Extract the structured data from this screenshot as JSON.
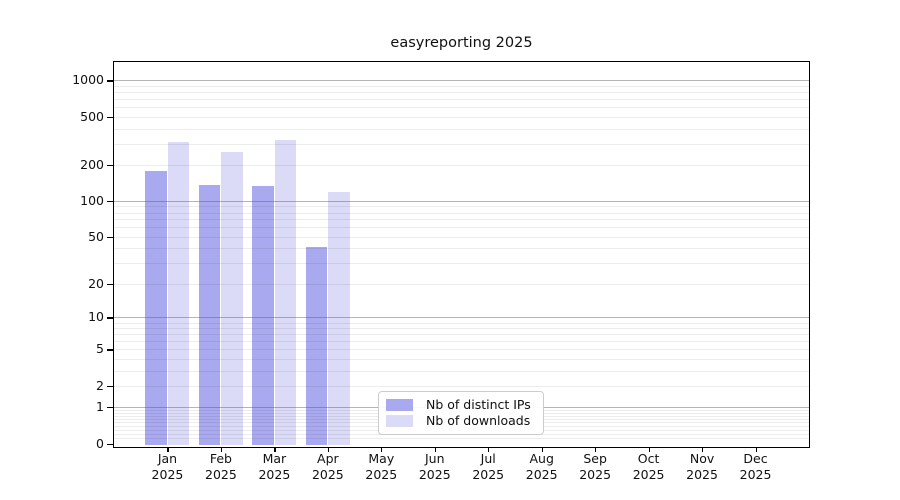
{
  "title": "easyreporting 2025",
  "chart_data": {
    "type": "bar",
    "title": "easyreporting 2025",
    "year": "2025",
    "categories": [
      "Jan",
      "Feb",
      "Mar",
      "Apr",
      "May",
      "Jun",
      "Jul",
      "Aug",
      "Sep",
      "Oct",
      "Nov",
      "Dec"
    ],
    "series": [
      {
        "name": "Nb of distinct IPs",
        "color": "#a9a9f0",
        "values": [
          177,
          135,
          134,
          41,
          0,
          0,
          0,
          0,
          0,
          0,
          0,
          0
        ]
      },
      {
        "name": "Nb of downloads",
        "color": "#dbdbf7",
        "values": [
          308,
          255,
          320,
          118,
          0,
          0,
          0,
          0,
          0,
          0,
          0,
          0
        ]
      }
    ],
    "y_axis": {
      "scale": "log10(value+1)",
      "ticks": [
        0,
        1,
        2,
        5,
        10,
        20,
        50,
        100,
        200,
        500,
        1000
      ],
      "ylim": [
        0,
        1450
      ],
      "major_grid_values": [
        1,
        10,
        100,
        1000
      ]
    },
    "xlabel": "",
    "ylabel": "",
    "grid": "horizontal major+minor, drawn over bars",
    "legend_position": "inside bottom-center"
  }
}
